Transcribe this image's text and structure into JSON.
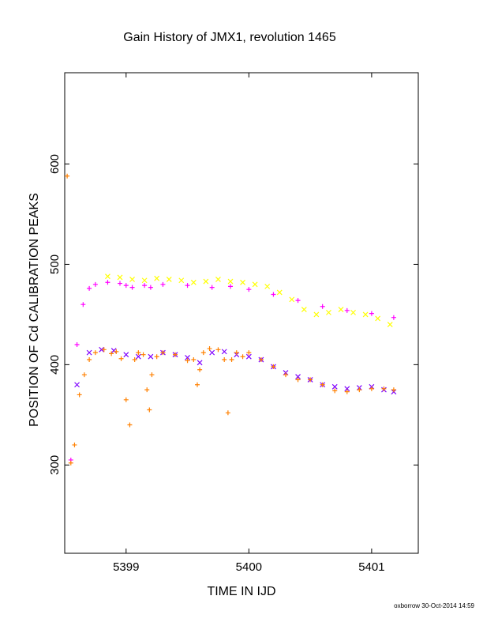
{
  "chart_data": {
    "type": "scatter",
    "title": "Gain History of JMX1, revolution 1465",
    "xlabel": "TIME IN IJD",
    "ylabel": "POSITION OF Cd CALIBRATION PEAKS",
    "xlim": [
      5398.5,
      5401.38
    ],
    "ylim": [
      212,
      691
    ],
    "x_ticks": [
      5399,
      5400,
      5401
    ],
    "y_ticks": [
      300,
      400,
      500,
      600
    ],
    "grid": false,
    "legend": "none",
    "series": [
      {
        "color": "#ffff00",
        "marker": "x",
        "x": [
          5398.85,
          5398.95,
          5399.05,
          5399.15,
          5399.25,
          5399.35,
          5399.45,
          5399.55,
          5399.65,
          5399.75,
          5399.85,
          5399.95,
          5400.05,
          5400.15,
          5400.25,
          5400.35,
          5400.45,
          5400.55,
          5400.65,
          5400.75,
          5400.85,
          5400.95,
          5401.05,
          5401.15
        ],
        "y": [
          488,
          487,
          485,
          484,
          486,
          485,
          484,
          482,
          483,
          485,
          483,
          482,
          480,
          478,
          472,
          465,
          455,
          450,
          452,
          455,
          452,
          450,
          446,
          440
        ]
      },
      {
        "color": "#ff00ff",
        "marker": "+",
        "x": [
          5398.55,
          5398.6,
          5398.65,
          5398.7,
          5398.75,
          5398.85,
          5398.95,
          5399.0,
          5399.05,
          5399.15,
          5399.2,
          5399.3,
          5399.5,
          5399.7,
          5399.85,
          5400.0,
          5400.2,
          5400.4,
          5400.6,
          5400.8,
          5401.0,
          5401.18
        ],
        "y": [
          305,
          420,
          460,
          476,
          480,
          482,
          481,
          479,
          477,
          479,
          477,
          480,
          479,
          477,
          478,
          475,
          470,
          464,
          458,
          454,
          451,
          447
        ]
      },
      {
        "color": "#7f00ff",
        "marker": "x",
        "x": [
          5398.6,
          5398.7,
          5398.8,
          5398.9,
          5399.0,
          5399.1,
          5399.2,
          5399.3,
          5399.4,
          5399.5,
          5399.6,
          5399.7,
          5399.8,
          5399.9,
          5400.0,
          5400.1,
          5400.2,
          5400.3,
          5400.4,
          5400.5,
          5400.6,
          5400.7,
          5400.8,
          5400.9,
          5401.0,
          5401.1,
          5401.18
        ],
        "y": [
          380,
          412,
          415,
          414,
          410,
          408,
          408,
          412,
          410,
          407,
          402,
          412,
          413,
          410,
          408,
          405,
          398,
          392,
          388,
          385,
          380,
          378,
          376,
          377,
          378,
          375,
          373
        ]
      },
      {
        "color": "#ff8000",
        "marker": "+",
        "x": [
          5398.52,
          5398.55,
          5398.58,
          5398.62,
          5398.66,
          5398.7,
          5398.75,
          5398.82,
          5398.88,
          5398.92,
          5398.96,
          5399.0,
          5399.03,
          5399.07,
          5399.1,
          5399.14,
          5399.17,
          5399.19,
          5399.21,
          5399.25,
          5399.3,
          5399.4,
          5399.5,
          5399.55,
          5399.58,
          5399.6,
          5399.63,
          5399.68,
          5399.75,
          5399.8,
          5399.83,
          5399.86,
          5399.9,
          5399.95,
          5400.0,
          5400.1,
          5400.2,
          5400.3,
          5400.4,
          5400.5,
          5400.6,
          5400.7,
          5400.8,
          5400.9,
          5401.0,
          5401.1,
          5401.18
        ],
        "y": [
          588,
          302,
          320,
          370,
          390,
          405,
          412,
          415,
          411,
          413,
          406,
          365,
          340,
          405,
          412,
          410,
          375,
          355,
          390,
          408,
          412,
          410,
          404,
          405,
          380,
          395,
          412,
          416,
          415,
          405,
          352,
          405,
          412,
          408,
          412,
          405,
          398,
          390,
          385,
          385,
          380,
          374,
          373,
          375,
          376,
          376,
          375
        ]
      }
    ]
  },
  "credit": "oxborrow 30-Oct-2014 14:59"
}
